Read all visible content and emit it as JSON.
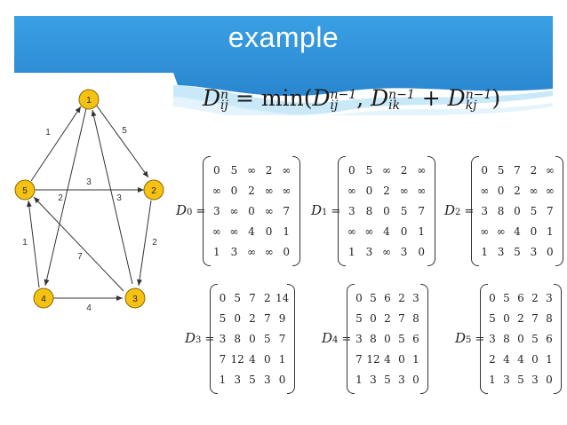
{
  "slide": {
    "title": "example",
    "colors": {
      "header_blue": "#2c8fd6",
      "header_light": "#bfe4f7",
      "node_fill": "#f5c213",
      "node_stroke": "#8a6a00"
    }
  },
  "formula": {
    "lhs": "D",
    "lhs_sup": "n",
    "lhs_sub": "ij",
    "eq": " = min(",
    "t1": "D",
    "t1_sup": "n−1",
    "t1_sub": "ij",
    "comma": ", ",
    "t2": "D",
    "t2_sup": "n−1",
    "t2_sub": "ik",
    "plus": " + ",
    "t3": "D",
    "t3_sup": "n−1",
    "t3_sub": "kj",
    "close": ")"
  },
  "graph": {
    "nodes": [
      {
        "id": "1",
        "label": "1"
      },
      {
        "id": "2",
        "label": "2"
      },
      {
        "id": "3",
        "label": "3"
      },
      {
        "id": "4",
        "label": "4"
      },
      {
        "id": "5",
        "label": "5"
      }
    ],
    "edge_weights": {
      "e5_1": "1",
      "e1_2": "5",
      "e5_2": "3",
      "e1_4": "2",
      "e3_1": "3",
      "e2_3": "2",
      "e4_5": "1",
      "e3_5": "7",
      "e4_3": "4"
    }
  },
  "matrices": [
    {
      "name": "D",
      "index": "0",
      "eq": "=",
      "rows": [
        [
          "0",
          "5",
          "∞",
          "2",
          "∞"
        ],
        [
          "∞",
          "0",
          "2",
          "∞",
          "∞"
        ],
        [
          "3",
          "∞",
          "0",
          "∞",
          "7"
        ],
        [
          "∞",
          "∞",
          "4",
          "0",
          "1"
        ],
        [
          "1",
          "3",
          "∞",
          "∞",
          "0"
        ]
      ]
    },
    {
      "name": "D",
      "index": "1",
      "eq": "=",
      "rows": [
        [
          "0",
          "5",
          "∞",
          "2",
          "∞"
        ],
        [
          "∞",
          "0",
          "2",
          "∞",
          "∞"
        ],
        [
          "3",
          "8",
          "0",
          "5",
          "7"
        ],
        [
          "∞",
          "∞",
          "4",
          "0",
          "1"
        ],
        [
          "1",
          "3",
          "∞",
          "3",
          "0"
        ]
      ]
    },
    {
      "name": "D",
      "index": "2",
      "eq": "=",
      "rows": [
        [
          "0",
          "5",
          "7",
          "2",
          "∞"
        ],
        [
          "∞",
          "0",
          "2",
          "∞",
          "∞"
        ],
        [
          "3",
          "8",
          "0",
          "5",
          "7"
        ],
        [
          "∞",
          "∞",
          "4",
          "0",
          "1"
        ],
        [
          "1",
          "3",
          "5",
          "3",
          "0"
        ]
      ]
    },
    {
      "name": "D",
      "index": "3",
      "eq": "=",
      "rows": [
        [
          "0",
          "5",
          "7",
          "2",
          "14"
        ],
        [
          "5",
          "0",
          "2",
          "7",
          "9"
        ],
        [
          "3",
          "8",
          "0",
          "5",
          "7"
        ],
        [
          "7",
          "12",
          "4",
          "0",
          "1"
        ],
        [
          "1",
          "3",
          "5",
          "3",
          "0"
        ]
      ]
    },
    {
      "name": "D",
      "index": "4",
      "eq": "=",
      "rows": [
        [
          "0",
          "5",
          "6",
          "2",
          "3"
        ],
        [
          "5",
          "0",
          "2",
          "7",
          "8"
        ],
        [
          "3",
          "8",
          "0",
          "5",
          "6"
        ],
        [
          "7",
          "12",
          "4",
          "0",
          "1"
        ],
        [
          "1",
          "3",
          "5",
          "3",
          "0"
        ]
      ]
    },
    {
      "name": "D",
      "index": "5",
      "eq": "=",
      "rows": [
        [
          "0",
          "5",
          "6",
          "2",
          "3"
        ],
        [
          "5",
          "0",
          "2",
          "7",
          "8"
        ],
        [
          "3",
          "8",
          "0",
          "5",
          "6"
        ],
        [
          "2",
          "4",
          "4",
          "0",
          "1"
        ],
        [
          "1",
          "3",
          "5",
          "3",
          "0"
        ]
      ]
    }
  ]
}
